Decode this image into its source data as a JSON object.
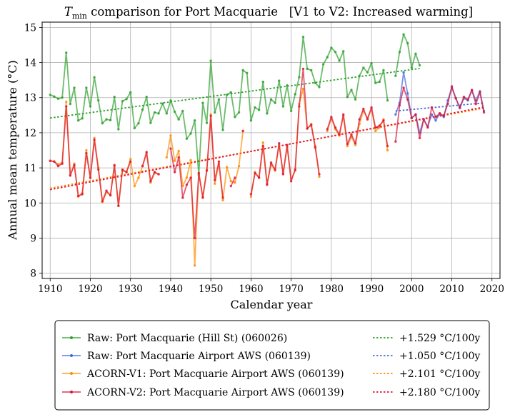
{
  "chart_data": {
    "type": "line",
    "title": "T_min comparison for Port Macquarie   [V1 to V2: Increased warming]",
    "title_parts": {
      "symbol": "T",
      "subscript": "min",
      "rest": " comparison for Port Macquarie   [V1 to V2: Increased warming]"
    },
    "xlabel": "Calendar year",
    "ylabel": "Annual mean temperature (°C)",
    "xlim": [
      1908,
      2022
    ],
    "ylim": [
      7.85,
      15.15
    ],
    "xticks": [
      1910,
      1920,
      1930,
      1940,
      1950,
      1960,
      1970,
      1980,
      1990,
      2000,
      2010,
      2020
    ],
    "yticks": [
      8,
      9,
      10,
      11,
      12,
      13,
      14,
      15
    ],
    "grid": true,
    "legend_position": "below",
    "series": [
      {
        "name": "Raw: Port Macquarie (Hill St) (060026)",
        "color": "#2ca02c",
        "x": [
          1910,
          1911,
          1912,
          1913,
          1914,
          1915,
          1916,
          1917,
          1918,
          1919,
          1920,
          1921,
          1922,
          1923,
          1924,
          1925,
          1926,
          1927,
          1928,
          1929,
          1930,
          1931,
          1932,
          1933,
          1934,
          1935,
          1936,
          1937,
          1938,
          1939,
          1940,
          1941,
          1942,
          1943,
          1944,
          1945,
          1946,
          1947,
          1948,
          1949,
          1950,
          1951,
          1952,
          1953,
          1954,
          1955,
          1956,
          1957,
          1958,
          1959,
          1960,
          1961,
          1962,
          1963,
          1964,
          1965,
          1966,
          1967,
          1968,
          1969,
          1970,
          1971,
          1972,
          1973,
          1974,
          1975,
          1976,
          1977,
          1978,
          1979,
          1980,
          1981,
          1982,
          1983,
          1984,
          1985,
          1986,
          1987,
          1988,
          1989,
          1990,
          1991,
          1992,
          1993,
          1994,
          null,
          1996,
          1997,
          1998,
          1999,
          2000,
          2001,
          2002
        ],
        "values": [
          13.08,
          13.03,
          12.97,
          13.0,
          14.28,
          12.82,
          13.28,
          12.35,
          12.41,
          13.28,
          12.75,
          13.58,
          12.92,
          12.27,
          12.38,
          12.36,
          13.02,
          12.1,
          12.9,
          12.96,
          13.15,
          12.13,
          12.27,
          12.66,
          13.02,
          12.28,
          12.58,
          12.55,
          12.83,
          12.55,
          12.92,
          12.6,
          12.38,
          12.62,
          11.83,
          11.98,
          12.35,
          10.8,
          12.85,
          12.28,
          14.05,
          12.58,
          12.95,
          12.08,
          13.08,
          13.15,
          12.45,
          12.58,
          13.78,
          13.7,
          12.35,
          12.72,
          12.65,
          13.45,
          12.55,
          12.95,
          12.85,
          13.48,
          12.75,
          13.35,
          12.62,
          13.1,
          13.58,
          14.73,
          13.82,
          13.78,
          13.42,
          13.3,
          13.95,
          14.15,
          14.42,
          14.3,
          14.05,
          14.32,
          13.02,
          13.22,
          12.95,
          13.62,
          13.85,
          13.72,
          13.98,
          13.42,
          13.45,
          13.78,
          12.92,
          null,
          13.62,
          14.3,
          14.8,
          14.55,
          13.85,
          14.25,
          13.92
        ]
      },
      {
        "name": "Raw: Port Macquarie Airport AWS (060139)",
        "color": "#4169e1",
        "x": [
          1996,
          1997,
          1998,
          1999,
          2000,
          2001,
          2002,
          2003,
          2004,
          2005,
          2006,
          2007,
          2008,
          2009,
          2010,
          2011,
          2012,
          2013,
          2014,
          2015,
          2016,
          2017,
          2018
        ],
        "values": [
          12.52,
          12.85,
          13.72,
          13.12,
          12.42,
          12.52,
          12.0,
          12.38,
          12.18,
          12.52,
          12.35,
          12.55,
          12.45,
          12.92,
          13.28,
          12.98,
          12.7,
          12.98,
          12.92,
          13.2,
          12.92,
          13.18,
          12.62
        ]
      },
      {
        "name": "ACORN-V1: Port Macquarie Airport AWS (060139)",
        "color": "#ff8c00",
        "x": [
          1910,
          1911,
          1912,
          1913,
          1914,
          1915,
          1916,
          1917,
          1918,
          1919,
          1920,
          1921,
          1922,
          1923,
          1924,
          1925,
          1926,
          1927,
          1928,
          1929,
          1930,
          1931,
          1932,
          1933,
          1934,
          1935,
          1936,
          1937,
          1938,
          1939,
          1940,
          1941,
          1942,
          1943,
          1944,
          1945,
          1946,
          1947,
          1948,
          1949,
          1950,
          1951,
          1952,
          1953,
          1954,
          1955,
          1956,
          1957,
          1958,
          1959,
          1960,
          1961,
          1962,
          1963,
          1964,
          1965,
          1966,
          1967,
          1968,
          1969,
          1970,
          1971,
          1972,
          1973,
          1974,
          1975,
          1976,
          1977,
          1978,
          1979,
          1980,
          1981,
          1982,
          1983,
          1984,
          1985,
          1986,
          1987,
          1988,
          1989,
          1990,
          1991,
          1992,
          1993,
          1994
        ],
        "values": [
          11.2,
          11.18,
          11.1,
          11.15,
          12.88,
          10.8,
          11.12,
          10.18,
          10.28,
          11.5,
          10.72,
          11.85,
          11.0,
          10.02,
          10.3,
          10.22,
          11.05,
          9.92,
          10.92,
          10.88,
          11.25,
          10.48,
          10.72,
          11.05,
          11.42,
          10.58,
          10.85,
          10.82,
          null,
          11.3,
          11.92,
          11.2,
          11.48,
          10.48,
          10.72,
          11.22,
          8.22,
          10.85,
          10.18,
          10.95,
          12.52,
          10.55,
          11.12,
          10.08,
          11.02,
          10.62,
          10.58,
          11.05,
          12.05,
          null,
          10.18,
          10.88,
          10.72,
          11.72,
          10.55,
          11.1,
          10.92,
          11.65,
          10.85,
          11.6,
          10.68,
          10.92,
          12.82,
          13.25,
          12.12,
          12.25,
          11.62,
          10.75,
          null,
          12.05,
          12.42,
          12.1,
          11.92,
          12.48,
          11.62,
          11.88,
          11.65,
          12.25,
          12.62,
          12.42,
          12.68,
          12.05,
          12.15,
          12.38,
          11.5
        ]
      },
      {
        "name": "ACORN-V2: Port Macquarie Airport AWS (060139)",
        "color": "#dc143c",
        "x": [
          1910,
          1911,
          1912,
          1913,
          1914,
          1915,
          1916,
          1917,
          1918,
          1919,
          1920,
          1921,
          1922,
          1923,
          1924,
          1925,
          1926,
          1927,
          1928,
          1929,
          1930,
          1931,
          1932,
          1933,
          1934,
          1935,
          1936,
          1937,
          1938,
          1939,
          1940,
          1941,
          1942,
          1943,
          1944,
          1945,
          1946,
          1947,
          1948,
          1949,
          1950,
          1951,
          1952,
          1953,
          1954,
          1955,
          1956,
          1957,
          1958,
          1959,
          1960,
          1961,
          1962,
          1963,
          1964,
          1965,
          1966,
          1967,
          1968,
          1969,
          1970,
          1971,
          1972,
          1973,
          1974,
          1975,
          1976,
          1977,
          1978,
          1979,
          1980,
          1981,
          1982,
          1983,
          1984,
          1985,
          1986,
          1987,
          1988,
          1989,
          1990,
          1991,
          1992,
          1993,
          1994,
          1995,
          1996,
          1997,
          1998,
          1999,
          2000,
          2001,
          2002,
          2003,
          2004,
          2005,
          2006,
          2007,
          2008,
          2009,
          2010,
          2011,
          2012,
          2013,
          2014,
          2015,
          2016,
          2017,
          2018
        ],
        "values": [
          11.2,
          11.18,
          11.05,
          11.12,
          12.75,
          10.78,
          11.08,
          10.2,
          10.25,
          11.42,
          10.72,
          11.8,
          10.95,
          10.05,
          10.35,
          10.22,
          11.08,
          9.92,
          10.95,
          10.88,
          11.18,
          null,
          null,
          11.05,
          11.45,
          10.62,
          10.88,
          10.82,
          null,
          null,
          11.55,
          10.88,
          11.3,
          10.15,
          10.52,
          10.72,
          9.0,
          10.85,
          10.15,
          10.92,
          12.48,
          10.65,
          11.18,
          10.15,
          null,
          10.48,
          10.72,
          null,
          12.05,
          null,
          10.25,
          10.85,
          10.72,
          11.62,
          10.52,
          11.15,
          10.95,
          11.7,
          10.82,
          11.65,
          10.62,
          10.95,
          12.75,
          13.82,
          12.12,
          12.22,
          11.58,
          10.82,
          null,
          12.1,
          12.45,
          12.15,
          11.95,
          12.52,
          11.68,
          11.95,
          11.7,
          12.38,
          12.68,
          12.38,
          12.72,
          12.15,
          12.2,
          12.35,
          11.62,
          null,
          11.75,
          12.78,
          13.28,
          12.95,
          12.42,
          12.52,
          11.85,
          12.38,
          12.15,
          12.72,
          12.45,
          12.55,
          12.48,
          12.82,
          13.32,
          12.98,
          12.72,
          13.02,
          12.95,
          13.22,
          12.82,
          13.15,
          12.58
        ]
      }
    ],
    "trendlines": [
      {
        "label": "+1.529 °C/100y",
        "color": "#2ca02c",
        "x": [
          1910,
          2002
        ],
        "values": [
          12.42,
          13.83
        ]
      },
      {
        "label": "+1.050 °C/100y",
        "color": "#4169e1",
        "x": [
          1996,
          2018
        ],
        "values": [
          12.62,
          12.85
        ]
      },
      {
        "label": "+2.101 °C/100y",
        "color": "#ff8c00",
        "x": [
          1910,
          2018
        ],
        "values": [
          10.42,
          12.7
        ]
      },
      {
        "label": "+2.180 °C/100y",
        "color": "#dc143c",
        "x": [
          1910,
          2018
        ],
        "values": [
          10.38,
          12.73
        ]
      }
    ]
  }
}
